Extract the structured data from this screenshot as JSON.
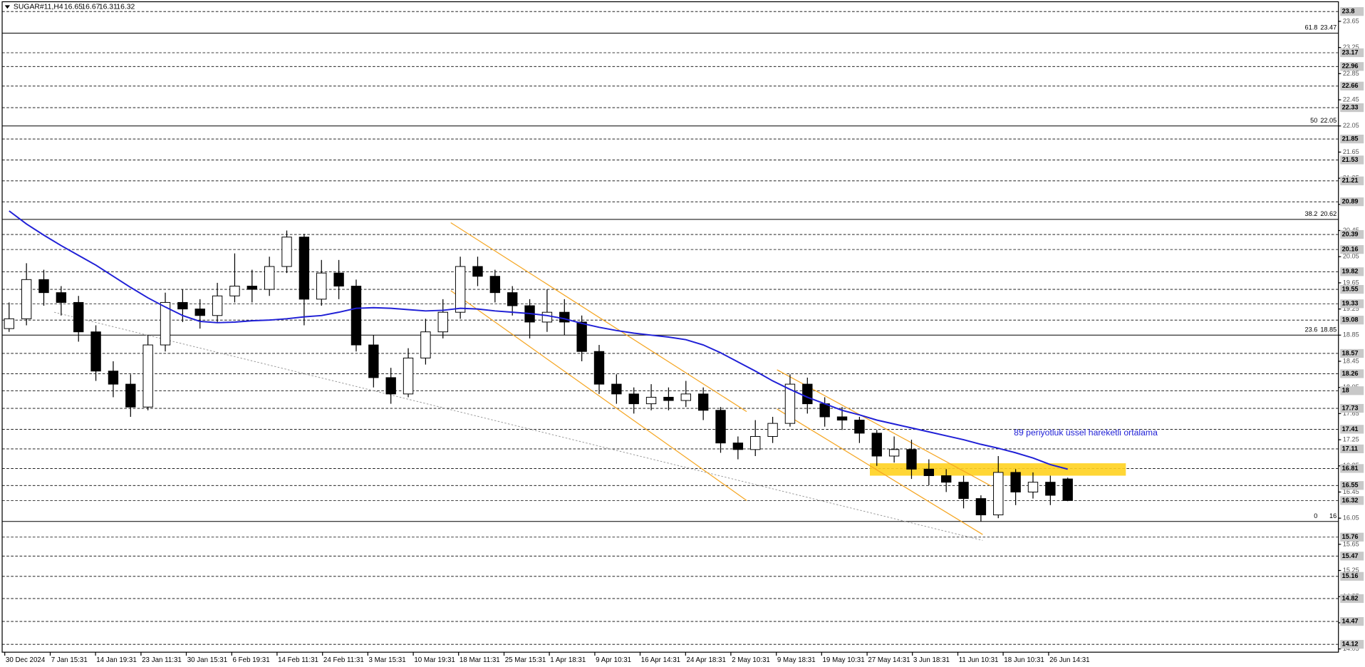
{
  "chart_data": {
    "type": "candlestick",
    "title": "SUGAR#11,H4",
    "open": [
      18.95,
      19.1,
      19.7,
      19.5,
      19.35,
      18.9,
      18.3,
      18.1,
      17.75,
      18.7,
      19.35,
      19.25,
      19.15,
      19.45,
      19.6,
      19.55,
      19.9,
      20.35,
      19.4,
      19.8,
      19.6,
      18.7,
      18.2,
      17.95,
      18.5,
      18.9,
      19.2,
      19.9,
      19.75,
      19.5,
      19.3,
      19.05,
      19.2,
      19.05,
      18.6,
      18.1,
      17.95,
      17.8,
      17.9,
      17.85,
      17.95,
      17.7,
      17.2,
      17.1,
      17.3,
      17.5,
      18.1,
      17.8,
      17.6,
      17.55,
      17.35,
      17.0,
      17.1,
      16.8,
      16.7,
      16.6,
      16.35,
      16.1,
      16.75,
      16.45,
      16.6,
      16.65
    ],
    "high": [
      19.35,
      19.95,
      19.85,
      19.6,
      19.45,
      19.0,
      18.45,
      18.25,
      18.85,
      19.5,
      19.55,
      19.4,
      19.65,
      20.1,
      19.85,
      20.05,
      20.45,
      20.4,
      20.0,
      20.0,
      19.7,
      18.85,
      18.35,
      18.65,
      19.1,
      19.4,
      20.05,
      20.05,
      19.85,
      19.6,
      19.4,
      19.55,
      19.4,
      19.15,
      18.7,
      18.25,
      18.05,
      18.1,
      18.05,
      18.15,
      18.05,
      17.75,
      17.3,
      17.55,
      17.6,
      18.25,
      18.2,
      17.9,
      17.75,
      17.6,
      17.4,
      17.3,
      17.25,
      16.95,
      16.8,
      16.7,
      16.4,
      17.0,
      16.8,
      16.75,
      16.7,
      16.67
    ],
    "low": [
      18.9,
      19.0,
      19.3,
      19.15,
      18.75,
      18.15,
      17.9,
      17.6,
      17.7,
      18.6,
      19.05,
      18.95,
      19.05,
      19.35,
      19.35,
      19.45,
      19.8,
      19.0,
      19.3,
      19.4,
      18.6,
      18.05,
      17.8,
      17.9,
      18.4,
      18.8,
      19.1,
      19.6,
      19.35,
      19.15,
      18.8,
      18.9,
      18.85,
      18.45,
      17.95,
      17.8,
      17.65,
      17.7,
      17.7,
      17.75,
      17.55,
      17.05,
      16.95,
      17.0,
      17.2,
      17.45,
      17.65,
      17.45,
      17.4,
      17.2,
      16.85,
      16.9,
      16.65,
      16.55,
      16.45,
      16.2,
      16.0,
      16.05,
      16.25,
      16.35,
      16.25,
      16.31
    ],
    "close": [
      19.1,
      19.7,
      19.5,
      19.35,
      18.9,
      18.3,
      18.1,
      17.75,
      18.7,
      19.35,
      19.25,
      19.15,
      19.45,
      19.6,
      19.55,
      19.9,
      20.35,
      19.4,
      19.8,
      19.6,
      18.7,
      18.2,
      17.95,
      18.5,
      18.9,
      19.2,
      19.9,
      19.75,
      19.5,
      19.3,
      19.05,
      19.2,
      19.05,
      18.6,
      18.1,
      17.95,
      17.8,
      17.9,
      17.85,
      17.95,
      17.7,
      17.2,
      17.1,
      17.3,
      17.5,
      18.1,
      17.8,
      17.6,
      17.55,
      17.35,
      17.0,
      17.1,
      16.8,
      16.7,
      16.6,
      16.35,
      16.1,
      16.75,
      16.45,
      16.6,
      16.4,
      16.32
    ],
    "ema": {
      "color": "#1f1fd6",
      "values": [
        20.75,
        20.55,
        20.38,
        20.22,
        20.07,
        19.92,
        19.75,
        19.58,
        19.42,
        19.28,
        19.15,
        19.06,
        19.04,
        19.05,
        19.07,
        19.08,
        19.1,
        19.13,
        19.15,
        19.2,
        19.26,
        19.27,
        19.26,
        19.24,
        19.22,
        19.23,
        19.26,
        19.25,
        19.22,
        19.2,
        19.18,
        19.15,
        19.1,
        19.03,
        18.97,
        18.92,
        18.88,
        18.85,
        18.82,
        18.78,
        18.7,
        18.58,
        18.44,
        18.3,
        18.15,
        18.02,
        17.9,
        17.8,
        17.7,
        17.63,
        17.55,
        17.49,
        17.43,
        17.37,
        17.31,
        17.25,
        17.18,
        17.12,
        17.05,
        16.97,
        16.87,
        16.8
      ]
    },
    "annotation": "89 periyotluk üssel hareketli ortalama",
    "ylim": [
      14.0,
      23.95
    ],
    "xlim": [
      -0.4,
      76.6
    ],
    "yticks": [
      14.05,
      14.45,
      14.85,
      15.25,
      15.65,
      16.05,
      16.45,
      16.85,
      17.25,
      17.65,
      18.05,
      18.45,
      18.85,
      19.25,
      19.65,
      20.05,
      20.45,
      20.85,
      21.25,
      21.65,
      22.05,
      22.45,
      22.85,
      23.25,
      23.65
    ],
    "xticks": [
      {
        "value": -0.25,
        "label": "30 Dec 2024"
      },
      {
        "value": 2.37,
        "label": "7 Jan 15:31"
      },
      {
        "value": 4.98,
        "label": "14 Jan 19:31"
      },
      {
        "value": 7.6,
        "label": "23 Jan 11:31"
      },
      {
        "value": 10.21,
        "label": "30 Jan 15:31"
      },
      {
        "value": 12.83,
        "label": "6 Feb 19:31"
      },
      {
        "value": 15.44,
        "label": "14 Feb 11:31"
      },
      {
        "value": 18.06,
        "label": "24 Feb 11:31"
      },
      {
        "value": 20.67,
        "label": "3 Mar 15:31"
      },
      {
        "value": 23.29,
        "label": "10 Mar 19:31"
      },
      {
        "value": 25.9,
        "label": "18 Mar 11:31"
      },
      {
        "value": 28.52,
        "label": "25 Mar 15:31"
      },
      {
        "value": 31.13,
        "label": "1 Apr 18:31"
      },
      {
        "value": 33.75,
        "label": "9 Apr 10:31"
      },
      {
        "value": 36.36,
        "label": "16 Apr 14:31"
      },
      {
        "value": 38.98,
        "label": "24 Apr 18:31"
      },
      {
        "value": 41.59,
        "label": "2 May 10:31"
      },
      {
        "value": 44.21,
        "label": "9 May 18:31"
      },
      {
        "value": 46.82,
        "label": "19 May 10:31"
      },
      {
        "value": 49.44,
        "label": "27 May 14:31"
      },
      {
        "value": 52.05,
        "label": "3 Jun 18:31"
      },
      {
        "value": 54.67,
        "label": "11 Jun 10:31"
      },
      {
        "value": 57.28,
        "label": "18 Jun 10:31"
      },
      {
        "value": 59.9,
        "label": "26 Jun 14:31"
      }
    ],
    "levels": [
      23.8,
      23.17,
      22.96,
      22.66,
      22.33,
      21.85,
      21.53,
      21.21,
      20.89,
      20.39,
      20.16,
      19.82,
      19.55,
      19.33,
      19.08,
      18.57,
      18.26,
      18.0,
      17.73,
      17.41,
      17.11,
      16.81,
      16.55,
      16.32,
      15.76,
      15.47,
      15.16,
      14.82,
      14.47,
      14.12
    ],
    "fibonacci": [
      {
        "ratio": 61.8,
        "value": 23.47
      },
      {
        "ratio": 50.0,
        "value": 22.05
      },
      {
        "ratio": 38.2,
        "value": 20.62
      },
      {
        "ratio": 23.6,
        "value": 18.85
      },
      {
        "ratio": 0.0,
        "value": 16.0
      }
    ],
    "channels": {
      "color": "#f5a623",
      "lines": [
        {
          "from": [
            25.45,
            20.57
          ],
          "to": [
            42.5,
            17.68
          ]
        },
        {
          "from": [
            25.45,
            19.53
          ],
          "to": [
            42.5,
            16.32
          ]
        },
        {
          "from": [
            44.25,
            18.32
          ],
          "to": [
            56.6,
            16.54
          ]
        },
        {
          "from": [
            44.25,
            17.72
          ],
          "to": [
            56.1,
            15.8
          ]
        }
      ]
    },
    "trendline": {
      "color": "#999999",
      "from": [
        2.6,
        19.2
      ],
      "to": [
        56.1,
        15.71
      ]
    },
    "zone": {
      "color": "#ffd21f",
      "from": 49.6,
      "to": 64.35,
      "low": 16.7,
      "high": 16.89
    }
  }
}
